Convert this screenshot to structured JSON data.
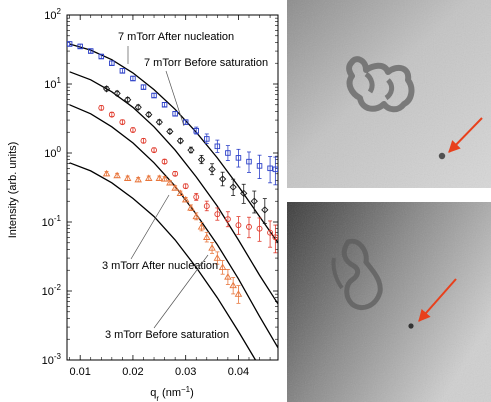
{
  "chart_data": {
    "type": "scatter",
    "y_scale": "log",
    "xlim": [
      0.0075,
      0.0475
    ],
    "ylim": [
      0.001,
      100
    ],
    "x_ticks": [
      "0.01",
      "0.02",
      "0.03",
      "0.04"
    ],
    "x_tick_values": [
      0.01,
      0.02,
      0.03,
      0.04
    ],
    "y_tick_values": [
      0.001,
      0.01,
      0.1,
      1,
      10,
      100
    ],
    "y_tick_exponents": [
      "-3",
      "-2",
      "-1",
      "0",
      "1",
      "2"
    ],
    "y_tick_base": "10",
    "ylabel": "Intensity (arb. units)",
    "xlabel_main": "q",
    "xlabel_sub": "r",
    "xlabel_unit": " (nm",
    "xlabel_unit_exp": "−1",
    "xlabel_close": ")",
    "grid": false,
    "series": [
      {
        "name": "7 mTorr After nucleation",
        "color": "#2b3fc8",
        "marker": "square-open",
        "x": [
          0.008,
          0.01,
          0.012,
          0.014,
          0.016,
          0.018,
          0.02,
          0.022,
          0.024,
          0.026,
          0.028,
          0.03,
          0.032,
          0.034,
          0.036,
          0.038,
          0.04,
          0.042,
          0.044,
          0.046,
          0.047
        ],
        "y": [
          38,
          35,
          30,
          25,
          20,
          15.5,
          12,
          9,
          6.8,
          5,
          3.7,
          2.8,
          2.1,
          1.6,
          1.25,
          1.0,
          0.85,
          0.75,
          0.65,
          0.6,
          0.58
        ]
      },
      {
        "name": "7 mTorr Before saturation",
        "color": "#1a1a1a",
        "marker": "diamond-open",
        "x": [
          0.015,
          0.017,
          0.019,
          0.021,
          0.023,
          0.025,
          0.027,
          0.029,
          0.031,
          0.033,
          0.035,
          0.037,
          0.039,
          0.041,
          0.043,
          0.045
        ],
        "y": [
          8.5,
          7.3,
          5.9,
          4.6,
          3.6,
          2.8,
          2.05,
          1.5,
          1.1,
          0.8,
          0.58,
          0.42,
          0.32,
          0.26,
          0.2,
          0.15
        ]
      },
      {
        "name": "3 mTorr After nucleation",
        "color": "#e03a2c",
        "marker": "circle-open",
        "x": [
          0.014,
          0.016,
          0.018,
          0.02,
          0.022,
          0.024,
          0.026,
          0.028,
          0.03,
          0.032,
          0.034,
          0.036,
          0.038,
          0.04,
          0.042,
          0.044,
          0.046,
          0.047
        ],
        "y": [
          4.5,
          3.6,
          2.8,
          2.15,
          1.5,
          1.1,
          0.75,
          0.5,
          0.33,
          0.23,
          0.17,
          0.13,
          0.11,
          0.09,
          0.085,
          0.08,
          0.07,
          0.06
        ]
      },
      {
        "name": "3 mTorr Before saturation",
        "color": "#e8763c",
        "marker": "triangle-open",
        "x": [
          0.015,
          0.017,
          0.019,
          0.021,
          0.023,
          0.025,
          0.026,
          0.027,
          0.028,
          0.029,
          0.03,
          0.031,
          0.032,
          0.033,
          0.034,
          0.035,
          0.036,
          0.037,
          0.038,
          0.039,
          0.04
        ],
        "y": [
          0.5,
          0.47,
          0.43,
          0.41,
          0.43,
          0.43,
          0.42,
          0.37,
          0.31,
          0.26,
          0.21,
          0.16,
          0.12,
          0.085,
          0.06,
          0.042,
          0.03,
          0.022,
          0.016,
          0.012,
          0.009
        ]
      }
    ],
    "fits": [
      {
        "x": [
          0.008,
          0.012,
          0.016,
          0.02,
          0.024,
          0.028,
          0.032,
          0.036,
          0.04,
          0.044,
          0.0475
        ],
        "y": [
          38,
          31,
          22.5,
          14.5,
          8.3,
          4.3,
          2.0,
          0.85,
          0.33,
          0.12,
          0.05
        ]
      },
      {
        "x": [
          0.008,
          0.012,
          0.016,
          0.02,
          0.024,
          0.028,
          0.032,
          0.036,
          0.04,
          0.044,
          0.0475
        ],
        "y": [
          15,
          11.5,
          7.7,
          4.6,
          2.4,
          1.1,
          0.45,
          0.17,
          0.055,
          0.017,
          0.0065
        ]
      },
      {
        "x": [
          0.008,
          0.012,
          0.016,
          0.02,
          0.024,
          0.028,
          0.032,
          0.036,
          0.04,
          0.044,
          0.0475
        ],
        "y": [
          5,
          3.7,
          2.4,
          1.4,
          0.72,
          0.33,
          0.13,
          0.047,
          0.015,
          0.0043,
          0.0015
        ]
      },
      {
        "x": [
          0.008,
          0.012,
          0.016,
          0.02,
          0.024,
          0.028,
          0.032,
          0.036,
          0.04,
          0.044,
          0.0475
        ],
        "y": [
          0.72,
          0.55,
          0.37,
          0.22,
          0.12,
          0.055,
          0.022,
          0.008,
          0.0026,
          0.0008,
          0.0003
        ]
      }
    ],
    "annotations": [
      "7 mTorr After nucleation",
      "7 mTorr Before saturation",
      "3 mTorr After nucleation",
      "3 mTorr Before saturation"
    ]
  },
  "micrographs": [
    {
      "arrow_color": "#e8401c"
    },
    {
      "arrow_color": "#e8401c"
    }
  ]
}
